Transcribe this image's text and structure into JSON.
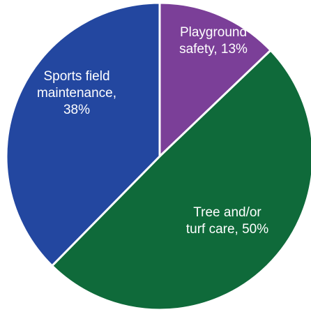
{
  "chart_data": {
    "type": "pie",
    "title": "",
    "slices": [
      {
        "name": "Playground safety",
        "value": 13,
        "label_lines": [
          "Playground",
          "safety, 13%"
        ],
        "color": "#7B3F98"
      },
      {
        "name": "Tree and/or turf care",
        "value": 50,
        "label_lines": [
          "Tree and/or",
          "turf care, 50%"
        ],
        "color": "#0F6A3A"
      },
      {
        "name": "Sports field maintenance",
        "value": 38,
        "label_lines": [
          "Sports field",
          "maintenance,",
          "38%"
        ],
        "color": "#2347A0"
      }
    ]
  }
}
